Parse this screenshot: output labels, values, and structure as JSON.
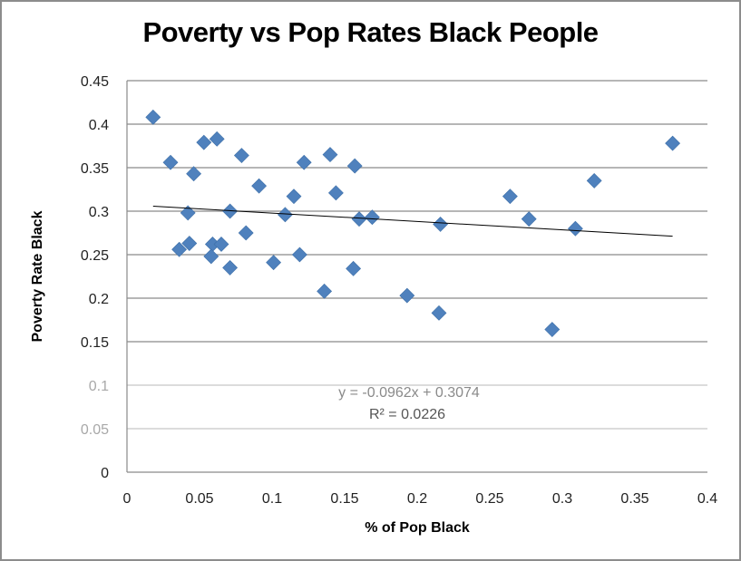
{
  "chart_data": {
    "type": "scatter",
    "title": "Poverty vs Pop Rates Black People",
    "xlabel": "% of Pop Black",
    "ylabel": "Poverty Rate Black",
    "xlim": [
      0,
      0.4
    ],
    "ylim": [
      0,
      0.45
    ],
    "x_ticks": [
      "0",
      "0.05",
      "0.1",
      "0.15",
      "0.2",
      "0.25",
      "0.3",
      "0.35",
      "0.4"
    ],
    "y_ticks": [
      "0",
      "0.05",
      "0.1",
      "0.15",
      "0.2",
      "0.25",
      "0.3",
      "0.35",
      "0.4",
      "0.45"
    ],
    "grid": "horizontal",
    "legend": "none",
    "marker": "diamond",
    "marker_color": "#4F81BD",
    "series": [
      {
        "name": "Poverty Rate Black",
        "points": [
          [
            0.018,
            0.408
          ],
          [
            0.03,
            0.356
          ],
          [
            0.046,
            0.343
          ],
          [
            0.053,
            0.379
          ],
          [
            0.062,
            0.383
          ],
          [
            0.079,
            0.364
          ],
          [
            0.091,
            0.329
          ],
          [
            0.042,
            0.298
          ],
          [
            0.071,
            0.3
          ],
          [
            0.082,
            0.275
          ],
          [
            0.036,
            0.256
          ],
          [
            0.043,
            0.263
          ],
          [
            0.059,
            0.262
          ],
          [
            0.065,
            0.262
          ],
          [
            0.058,
            0.248
          ],
          [
            0.071,
            0.235
          ],
          [
            0.101,
            0.241
          ],
          [
            0.122,
            0.356
          ],
          [
            0.14,
            0.365
          ],
          [
            0.157,
            0.352
          ],
          [
            0.115,
            0.317
          ],
          [
            0.144,
            0.321
          ],
          [
            0.109,
            0.296
          ],
          [
            0.16,
            0.291
          ],
          [
            0.169,
            0.293
          ],
          [
            0.119,
            0.25
          ],
          [
            0.156,
            0.234
          ],
          [
            0.136,
            0.208
          ],
          [
            0.216,
            0.285
          ],
          [
            0.193,
            0.203
          ],
          [
            0.215,
            0.183
          ],
          [
            0.264,
            0.317
          ],
          [
            0.277,
            0.291
          ],
          [
            0.309,
            0.28
          ],
          [
            0.322,
            0.335
          ],
          [
            0.376,
            0.378
          ],
          [
            0.293,
            0.164
          ]
        ]
      }
    ],
    "trendline": {
      "type": "linear",
      "slope": -0.0962,
      "intercept": 0.3074,
      "x_range": [
        0.018,
        0.376
      ],
      "color": "#000000",
      "equation_label": "y = -0.0962x + 0.3074",
      "r2_label": "R² = 0.0226"
    }
  }
}
